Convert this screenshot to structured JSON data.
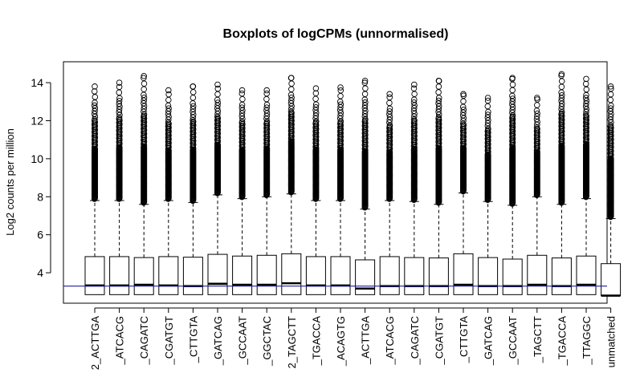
{
  "chart_data": {
    "type": "boxplot",
    "title": "Boxplots of logCPMs (unnormalised)",
    "xlabel": "",
    "ylabel": "Log2 counts per million",
    "ylim": [
      2.4,
      15.1
    ],
    "yticks": [
      4,
      6,
      8,
      10,
      12,
      14
    ],
    "reference_line": {
      "y": 3.3,
      "color": "#1f1f9f"
    },
    "categories": [
      "2_ACTTGA",
      "_ATCACG",
      "_CAGATC",
      "_CGATGT",
      "_CTTGTA",
      "_GATCAG",
      "_GCCAAT",
      "_GGCTAC",
      "2_TAGCTT",
      "_TGACCA",
      "_ACAGTG",
      "_ACTTGA",
      "_ATCACG",
      "_CAGATC",
      "_CGATGT",
      "_CTTGTA",
      "_GATCAG",
      "_GCCAAT",
      "_TAGCTT",
      "_TGACCA",
      "_TTAGGC",
      "unmatched"
    ],
    "boxes": [
      {
        "q1": 2.85,
        "median": 3.33,
        "q3": 4.85,
        "whisker_low": 2.85,
        "whisker_high": 7.8,
        "outlier_max": 13.8
      },
      {
        "q1": 2.85,
        "median": 3.33,
        "q3": 4.85,
        "whisker_low": 2.85,
        "whisker_high": 7.8,
        "outlier_max": 14.0
      },
      {
        "q1": 2.85,
        "median": 3.37,
        "q3": 4.8,
        "whisker_low": 2.85,
        "whisker_high": 7.6,
        "outlier_max": 14.35
      },
      {
        "q1": 2.85,
        "median": 3.33,
        "q3": 4.85,
        "whisker_low": 2.85,
        "whisker_high": 7.8,
        "outlier_max": 13.6
      },
      {
        "q1": 2.85,
        "median": 3.3,
        "q3": 4.82,
        "whisker_low": 2.85,
        "whisker_high": 7.7,
        "outlier_max": 13.8
      },
      {
        "q1": 2.85,
        "median": 3.42,
        "q3": 4.97,
        "whisker_low": 2.85,
        "whisker_high": 8.1,
        "outlier_max": 13.9
      },
      {
        "q1": 2.85,
        "median": 3.37,
        "q3": 4.88,
        "whisker_low": 2.85,
        "whisker_high": 7.9,
        "outlier_max": 13.6
      },
      {
        "q1": 2.85,
        "median": 3.37,
        "q3": 4.92,
        "whisker_low": 2.85,
        "whisker_high": 8.0,
        "outlier_max": 13.6
      },
      {
        "q1": 2.85,
        "median": 3.45,
        "q3": 5.0,
        "whisker_low": 2.85,
        "whisker_high": 8.15,
        "outlier_max": 14.25
      },
      {
        "q1": 2.85,
        "median": 3.33,
        "q3": 4.85,
        "whisker_low": 2.85,
        "whisker_high": 7.8,
        "outlier_max": 13.7
      },
      {
        "q1": 2.85,
        "median": 3.33,
        "q3": 4.85,
        "whisker_low": 2.85,
        "whisker_high": 7.8,
        "outlier_max": 13.75
      },
      {
        "q1": 2.85,
        "median": 3.17,
        "q3": 4.68,
        "whisker_low": 2.85,
        "whisker_high": 7.35,
        "outlier_max": 14.1
      },
      {
        "q1": 2.85,
        "median": 3.3,
        "q3": 4.85,
        "whisker_low": 2.85,
        "whisker_high": 7.8,
        "outlier_max": 13.4
      },
      {
        "q1": 2.85,
        "median": 3.3,
        "q3": 4.8,
        "whisker_low": 2.85,
        "whisker_high": 7.75,
        "outlier_max": 13.9
      },
      {
        "q1": 2.85,
        "median": 3.3,
        "q3": 4.78,
        "whisker_low": 2.85,
        "whisker_high": 7.6,
        "outlier_max": 14.1
      },
      {
        "q1": 2.85,
        "median": 3.37,
        "q3": 5.0,
        "whisker_low": 2.85,
        "whisker_high": 8.2,
        "outlier_max": 13.4
      },
      {
        "q1": 2.85,
        "median": 3.3,
        "q3": 4.8,
        "whisker_low": 2.85,
        "whisker_high": 7.75,
        "outlier_max": 13.2
      },
      {
        "q1": 2.85,
        "median": 3.3,
        "q3": 4.72,
        "whisker_low": 2.85,
        "whisker_high": 7.55,
        "outlier_max": 14.25
      },
      {
        "q1": 2.85,
        "median": 3.37,
        "q3": 4.92,
        "whisker_low": 2.85,
        "whisker_high": 8.0,
        "outlier_max": 13.2
      },
      {
        "q1": 2.85,
        "median": 3.3,
        "q3": 4.78,
        "whisker_low": 2.85,
        "whisker_high": 7.6,
        "outlier_max": 14.45
      },
      {
        "q1": 2.85,
        "median": 3.37,
        "q3": 4.88,
        "whisker_low": 2.85,
        "whisker_high": 7.9,
        "outlier_max": 14.2
      },
      {
        "q1": 2.8,
        "median": 2.8,
        "q3": 4.48,
        "whisker_low": 2.8,
        "whisker_high": 6.85,
        "outlier_max": 13.8
      }
    ],
    "grid": false,
    "legend": "none"
  }
}
